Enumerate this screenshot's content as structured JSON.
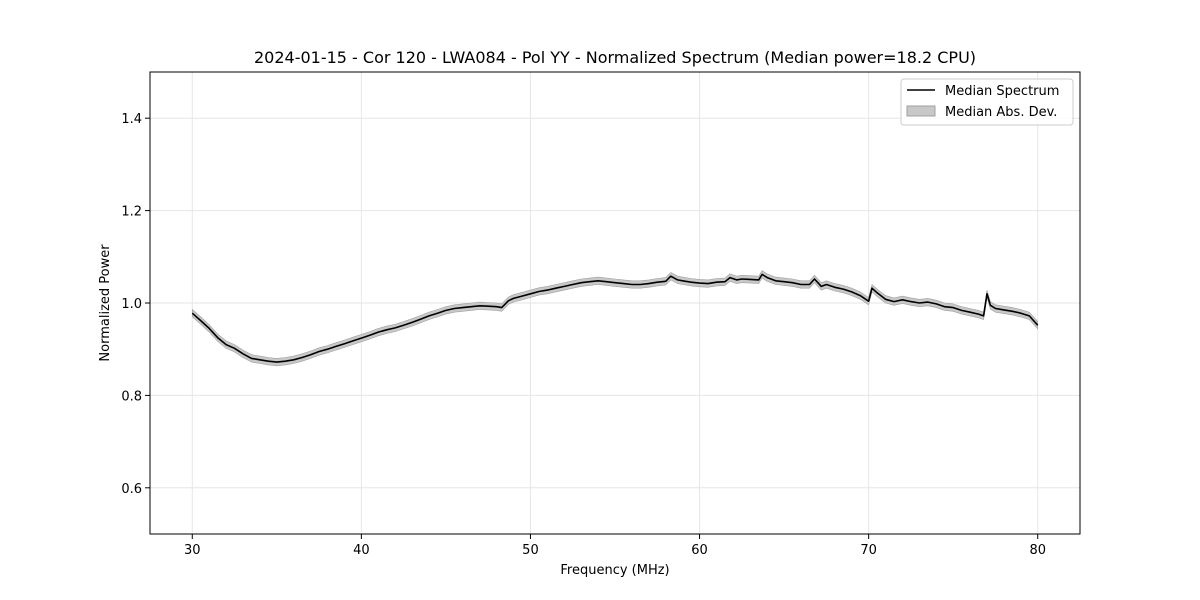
{
  "chart_data": {
    "type": "line",
    "title": "2024-01-15 - Cor 120 - LWA084 - Pol YY - Normalized Spectrum (Median power=18.2 CPU)",
    "xlabel": "Frequency (MHz)",
    "ylabel": "Normalized Power",
    "xlim": [
      27.5,
      82.5
    ],
    "ylim": [
      0.5,
      1.5
    ],
    "xticks": [
      30,
      40,
      50,
      60,
      70,
      80
    ],
    "yticks": [
      0.6,
      0.8,
      1.0,
      1.2,
      1.4
    ],
    "xtick_labels": [
      "30",
      "40",
      "50",
      "60",
      "70",
      "80"
    ],
    "ytick_labels": [
      "0.6",
      "0.8",
      "1.0",
      "1.2",
      "1.4"
    ],
    "grid": true,
    "legend_position": "top-right",
    "colors": {
      "line": "#000000",
      "band": "#c8c8c8",
      "band_edge": "#a0a0a0",
      "grid": "#e6e6e6"
    },
    "series": [
      {
        "name": "Median Spectrum",
        "kind": "line",
        "x": [
          30,
          30.5,
          31,
          31.5,
          32,
          32.5,
          33,
          33.5,
          34,
          34.5,
          35,
          35.5,
          36,
          36.5,
          37,
          37.5,
          38,
          38.5,
          39,
          39.5,
          40,
          40.5,
          41,
          41.5,
          42,
          42.5,
          43,
          43.5,
          44,
          44.5,
          45,
          45.5,
          46,
          46.5,
          47,
          47.5,
          48,
          48.3,
          48.7,
          49,
          49.5,
          50,
          50.5,
          51,
          51.5,
          52,
          52.5,
          53,
          53.5,
          54,
          54.5,
          55,
          55.5,
          56,
          56.5,
          57,
          57.5,
          58,
          58.3,
          58.7,
          59,
          59.5,
          60,
          60.5,
          61,
          61.5,
          61.8,
          62.2,
          62.5,
          63,
          63.5,
          63.7,
          64,
          64.5,
          65,
          65.5,
          66,
          66.5,
          66.8,
          67.2,
          67.5,
          68,
          68.5,
          69,
          69.5,
          70,
          70.2,
          70.5,
          71,
          71.5,
          72,
          72.5,
          73,
          73.5,
          74,
          74.5,
          75,
          75.5,
          76,
          76.5,
          76.8,
          77,
          77.2,
          77.5,
          78,
          78.5,
          79,
          79.5,
          80
        ],
        "values": [
          0.978,
          0.962,
          0.945,
          0.925,
          0.91,
          0.902,
          0.89,
          0.88,
          0.877,
          0.874,
          0.872,
          0.874,
          0.877,
          0.882,
          0.888,
          0.895,
          0.9,
          0.906,
          0.912,
          0.918,
          0.924,
          0.93,
          0.937,
          0.942,
          0.946,
          0.952,
          0.958,
          0.965,
          0.972,
          0.978,
          0.984,
          0.988,
          0.99,
          0.992,
          0.994,
          0.993,
          0.992,
          0.99,
          1.005,
          1.01,
          1.015,
          1.02,
          1.025,
          1.028,
          1.032,
          1.036,
          1.04,
          1.044,
          1.046,
          1.048,
          1.046,
          1.044,
          1.042,
          1.04,
          1.04,
          1.042,
          1.045,
          1.047,
          1.058,
          1.05,
          1.048,
          1.045,
          1.043,
          1.042,
          1.045,
          1.046,
          1.055,
          1.05,
          1.052,
          1.051,
          1.05,
          1.062,
          1.055,
          1.048,
          1.046,
          1.044,
          1.04,
          1.04,
          1.052,
          1.036,
          1.04,
          1.034,
          1.03,
          1.024,
          1.016,
          1.004,
          1.032,
          1.022,
          1.008,
          1.003,
          1.007,
          1.003,
          1.0,
          1.002,
          0.998,
          0.992,
          0.99,
          0.984,
          0.98,
          0.976,
          0.972,
          1.02,
          0.995,
          0.988,
          0.985,
          0.982,
          0.978,
          0.972,
          0.952
        ]
      },
      {
        "name": "Median Abs. Dev.",
        "kind": "band",
        "half_width": 0.008
      }
    ]
  }
}
